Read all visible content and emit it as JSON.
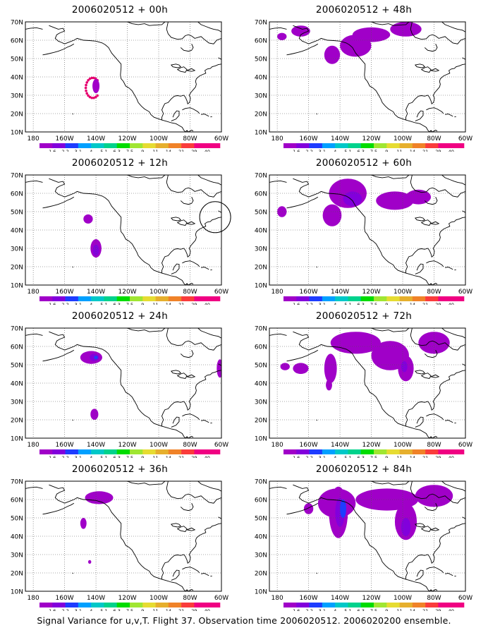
{
  "panels": [
    {
      "title": "2006020512 + 00h",
      "column": "left",
      "row": 0
    },
    {
      "title": "2006020512 + 12h",
      "column": "left",
      "row": 1
    },
    {
      "title": "2006020512 + 24h",
      "column": "left",
      "row": 2
    },
    {
      "title": "2006020512 + 36h",
      "column": "left",
      "row": 3
    },
    {
      "title": "2006020512 + 48h",
      "column": "right",
      "row": 0
    },
    {
      "title": "2006020512 + 60h",
      "column": "right",
      "row": 1
    },
    {
      "title": "2006020512 + 72h",
      "column": "right",
      "row": 2
    },
    {
      "title": "2006020512 + 84h",
      "column": "right",
      "row": 3
    }
  ],
  "axes": {
    "lat_labels": [
      "70N",
      "60N",
      "50N",
      "40N",
      "30N",
      "20N",
      "10N"
    ],
    "lon_labels": [
      "180",
      "160W",
      "140W",
      "120W",
      "100W",
      "80W",
      "60W"
    ]
  },
  "colorbar": {
    "labels": [
      "1.6",
      "2.2",
      "3.1",
      "4",
      "5.1",
      "6.3",
      "7.5",
      "9",
      "11",
      "14",
      "21",
      "29",
      "40"
    ],
    "colors": [
      "#a000c8",
      "#8200dc",
      "#1e3cff",
      "#00a0ff",
      "#00c8c8",
      "#00d28c",
      "#00dc00",
      "#a0e632",
      "#e6dc32",
      "#e6af2d",
      "#f08228",
      "#fa3c3c",
      "#f00082",
      "#f00082"
    ]
  },
  "caption": "Signal Variance for u,v,T. Flight 37. Observation time 2006020512. 2006020200 ensemble."
}
